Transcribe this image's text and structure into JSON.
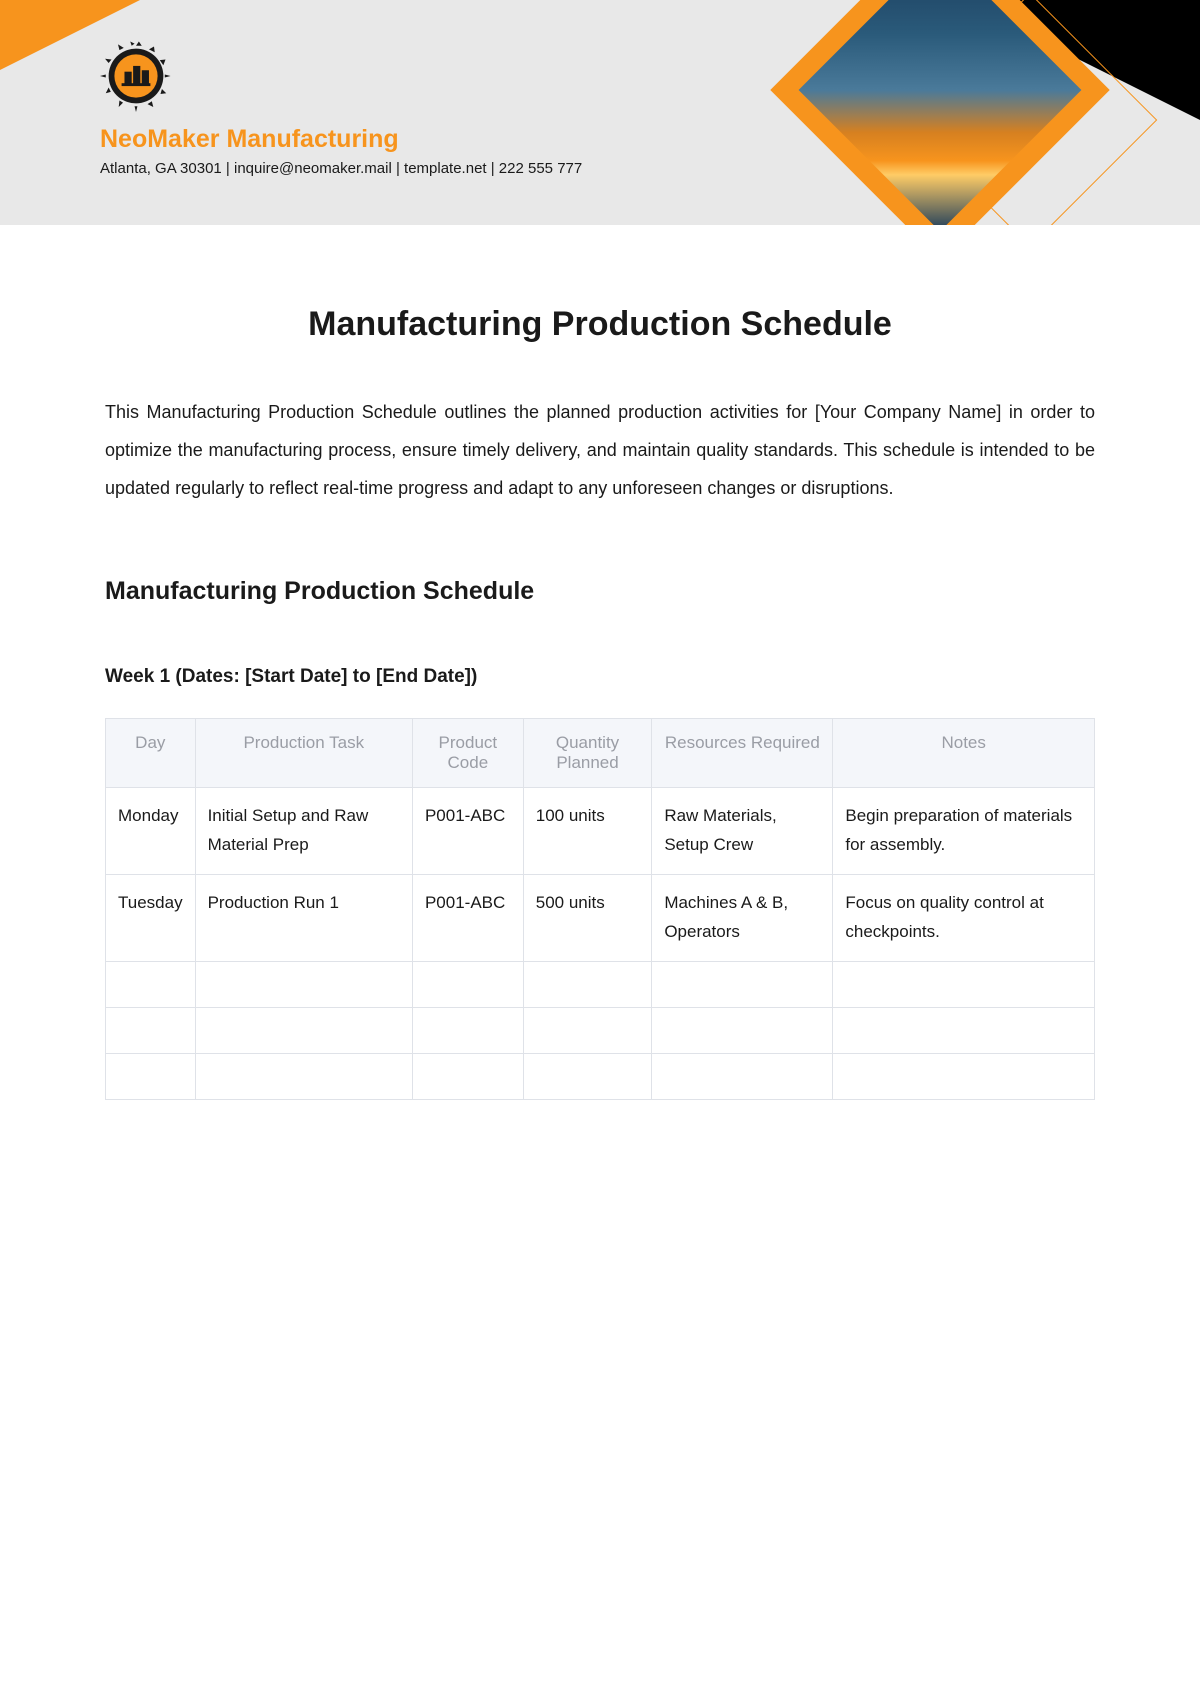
{
  "header": {
    "company_name": "NeoMaker Manufacturing",
    "contact": "Atlanta, GA 30301 | inquire@neomaker.mail | template.net | 222 555 777",
    "colors": {
      "accent": "#f7941d",
      "header_bg": "#e8e8e8",
      "black": "#000000",
      "text": "#1a1a1a"
    }
  },
  "document": {
    "title": "Manufacturing Production Schedule",
    "intro": "This Manufacturing Production Schedule outlines the planned production activities for [Your Company Name] in order to optimize the manufacturing process, ensure timely delivery, and maintain quality standards. This schedule is intended to be updated regularly to reflect real-time progress and adapt to any unforeseen changes or disruptions.",
    "section_title": "Manufacturing Production Schedule",
    "week_title": "Week 1 (Dates: [Start Date] to [End Date])"
  },
  "table": {
    "columns": [
      "Day",
      "Production Task",
      "Product Code",
      "Quantity Planned",
      "Resources Required",
      "Notes"
    ],
    "rows": [
      [
        "Monday",
        "Initial Setup and Raw Material Prep",
        "P001-ABC",
        "100 units",
        "Raw Materials, Setup Crew",
        "Begin preparation of materials for assembly."
      ],
      [
        "Tuesday",
        "Production Run 1",
        "P001-ABC",
        "500 units",
        "Machines A & B, Operators",
        "Focus on quality control at checkpoints."
      ]
    ],
    "empty_rows": 3,
    "header_bg": "#f4f6fa",
    "header_text_color": "#9a9da5",
    "border_color": "#dfe2e8"
  }
}
